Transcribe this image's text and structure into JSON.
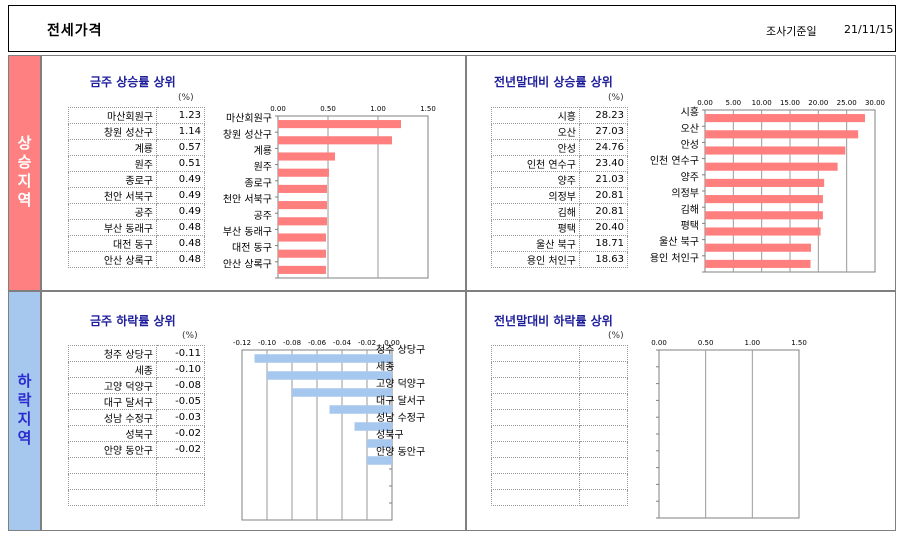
{
  "header": {
    "title": "전세가격",
    "date_label": "조사기준일",
    "date": "21/11/15"
  },
  "sides": {
    "rise": "상승지역",
    "fall": "하락지역"
  },
  "unit": "(%)",
  "panels": {
    "weekly_rise": {
      "title": "금주 상승률 상위",
      "rows": [
        {
          "name": "마산회원구",
          "value": "1.23"
        },
        {
          "name": "창원 성산구",
          "value": "1.14"
        },
        {
          "name": "계룡",
          "value": "0.57"
        },
        {
          "name": "원주",
          "value": "0.51"
        },
        {
          "name": "종로구",
          "value": "0.49"
        },
        {
          "name": "천안 서북구",
          "value": "0.49"
        },
        {
          "name": "공주",
          "value": "0.49"
        },
        {
          "name": "부산 동래구",
          "value": "0.48"
        },
        {
          "name": "대전 동구",
          "value": "0.48"
        },
        {
          "name": "안산 상록구",
          "value": "0.48"
        }
      ]
    },
    "ytd_rise": {
      "title": "전년말대비 상승률 상위",
      "rows": [
        {
          "name": "시흥",
          "value": "28.23"
        },
        {
          "name": "오산",
          "value": "27.03"
        },
        {
          "name": "안성",
          "value": "24.76"
        },
        {
          "name": "인천 연수구",
          "value": "23.40"
        },
        {
          "name": "양주",
          "value": "21.03"
        },
        {
          "name": "의정부",
          "value": "20.81"
        },
        {
          "name": "김해",
          "value": "20.81"
        },
        {
          "name": "평택",
          "value": "20.40"
        },
        {
          "name": "울산 북구",
          "value": "18.71"
        },
        {
          "name": "용인 처인구",
          "value": "18.63"
        }
      ]
    },
    "weekly_fall": {
      "title": "금주 하락률 상위",
      "rows": [
        {
          "name": "청주 상당구",
          "value": "-0.11"
        },
        {
          "name": "세종",
          "value": "-0.10"
        },
        {
          "name": "고양 덕양구",
          "value": "-0.08"
        },
        {
          "name": "대구 달서구",
          "value": "-0.05"
        },
        {
          "name": "성남 수정구",
          "value": "-0.03"
        },
        {
          "name": "성북구",
          "value": "-0.02"
        },
        {
          "name": "안양 동안구",
          "value": "-0.02"
        },
        {
          "name": "",
          "value": ""
        },
        {
          "name": "",
          "value": ""
        },
        {
          "name": "",
          "value": ""
        }
      ]
    },
    "ytd_fall": {
      "title": "전년말대비 하락률 상위",
      "rows": [
        {
          "name": "",
          "value": ""
        },
        {
          "name": "",
          "value": ""
        },
        {
          "name": "",
          "value": ""
        },
        {
          "name": "",
          "value": ""
        },
        {
          "name": "",
          "value": ""
        },
        {
          "name": "",
          "value": ""
        },
        {
          "name": "",
          "value": ""
        },
        {
          "name": "",
          "value": ""
        },
        {
          "name": "",
          "value": ""
        },
        {
          "name": "",
          "value": ""
        }
      ]
    }
  },
  "chart_data": [
    {
      "type": "bar",
      "orientation": "horizontal",
      "categories": [
        "마산회원구",
        "창원 성산구",
        "계룡",
        "원주",
        "종로구",
        "천안 서북구",
        "공주",
        "부산 동래구",
        "대전 동구",
        "안산 상록구"
      ],
      "values": [
        1.23,
        1.14,
        0.57,
        0.51,
        0.49,
        0.49,
        0.49,
        0.48,
        0.48,
        0.48
      ],
      "xlim": [
        0,
        1.5
      ],
      "ticks": [
        "0.00",
        "0.50",
        "1.00",
        "1.50"
      ],
      "bar_color": "#ff7f7f",
      "category_side": "left"
    },
    {
      "type": "bar",
      "orientation": "horizontal",
      "categories": [
        "시흥",
        "오산",
        "안성",
        "인천 연수구",
        "양주",
        "의정부",
        "김해",
        "평택",
        "울산 북구",
        "용인 처인구"
      ],
      "values": [
        28.23,
        27.03,
        24.76,
        23.4,
        21.03,
        20.81,
        20.81,
        20.4,
        18.71,
        18.63
      ],
      "xlim": [
        0,
        30
      ],
      "ticks": [
        "0.00",
        "5.00",
        "10.00",
        "15.00",
        "20.00",
        "25.00",
        "30.00"
      ],
      "bar_color": "#ff7f7f",
      "category_side": "left"
    },
    {
      "type": "bar",
      "orientation": "horizontal",
      "categories": [
        "청주 상당구",
        "세종",
        "고양 덕양구",
        "대구 달서구",
        "성남 수정구",
        "성북구",
        "안양 동안구"
      ],
      "values": [
        -0.11,
        -0.1,
        -0.08,
        -0.05,
        -0.03,
        -0.02,
        -0.02
      ],
      "slots": 10,
      "xlim": [
        -0.12,
        0
      ],
      "ticks": [
        "-0.12",
        "-0.10",
        "-0.08",
        "-0.06",
        "-0.04",
        "-0.02",
        "0.00"
      ],
      "bar_color": "#a6c8ee",
      "category_side": "right"
    },
    {
      "type": "bar",
      "orientation": "horizontal",
      "categories": [],
      "values": [],
      "slots": 10,
      "xlim": [
        0,
        1.5
      ],
      "ticks": [
        "0.00",
        "0.50",
        "1.00",
        "1.50"
      ],
      "bar_color": "#a6c8ee",
      "category_side": "left"
    }
  ]
}
